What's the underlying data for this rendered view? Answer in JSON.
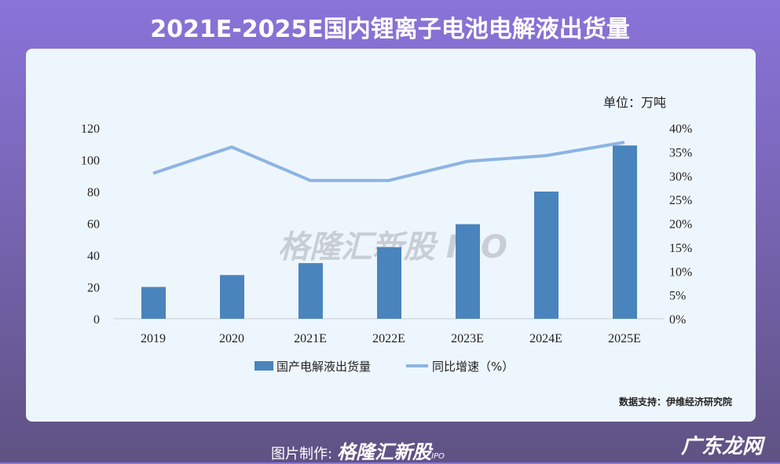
{
  "title": "2021E-2025E国内锂离子电池电解液出货量",
  "footer": {
    "label": "图片制作:",
    "brand": "格隆汇新股",
    "brand_sub": "IPO"
  },
  "site_logo": "广东龙网",
  "chart_data": {
    "type": "bar+line",
    "categories": [
      "2019",
      "2020",
      "2021E",
      "2022E",
      "2023E",
      "2024E",
      "2025E"
    ],
    "unit_label": "单位：万吨",
    "source": "数据支持：伊维经济研究院",
    "watermark": "格隆汇新股 IPO",
    "left_axis": {
      "ylim": [
        0,
        120
      ],
      "ticks": [
        "0",
        "20",
        "40",
        "60",
        "80",
        "100",
        "120"
      ]
    },
    "right_axis": {
      "ylim": [
        0,
        40
      ],
      "ticks": [
        "0%",
        "5%",
        "10%",
        "15%",
        "20%",
        "25%",
        "30%",
        "35%",
        "40%"
      ]
    },
    "grid": false,
    "legend_position": "bottom",
    "series": [
      {
        "name": "国产电解液出货量",
        "type": "bar",
        "axis": "left",
        "color": "#4a84bd",
        "values": [
          20,
          27.5,
          35,
          45,
          59.5,
          80,
          109
        ]
      },
      {
        "name": "同比增速（%）",
        "type": "line",
        "axis": "right",
        "color": "#8db4e2",
        "values": [
          30.5,
          36,
          29,
          29,
          33,
          34.2,
          37
        ]
      }
    ]
  }
}
